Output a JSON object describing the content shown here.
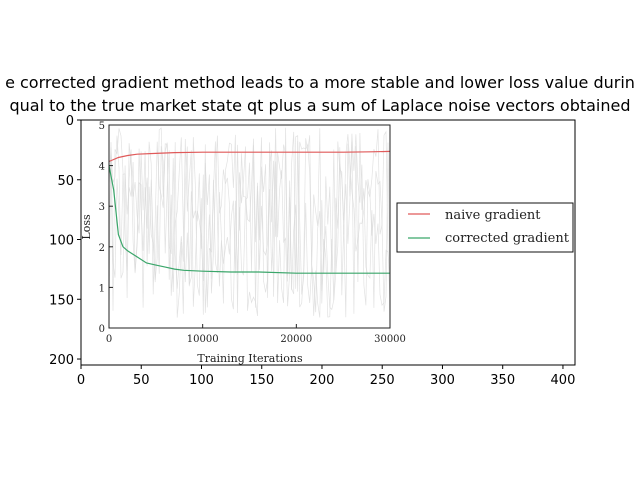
{
  "chart_data": {
    "type": "line",
    "title_lines": [
      "e corrected gradient method leads to a more stable and lower loss value durin",
      "qual to the true market state qt plus a sum of Laplace noise vectors obtained"
    ],
    "outer_axes": {
      "xlim": [
        0,
        410
      ],
      "ylim": [
        205,
        0
      ],
      "xticks": [
        0,
        50,
        100,
        150,
        200,
        250,
        300,
        350,
        400
      ],
      "yticks": [
        0,
        50,
        100,
        150,
        200
      ]
    },
    "inner_plot": {
      "xlabel": "Training Iterations",
      "ylabel": "Loss",
      "xlim": [
        0,
        30000
      ],
      "ylim": [
        0,
        5
      ],
      "xticks": [
        0,
        10000,
        20000,
        30000
      ],
      "yticks": [
        0,
        1,
        2,
        3,
        4,
        5
      ],
      "legend_position": "center-right",
      "series": [
        {
          "name": "naive gradient",
          "color": "#e05a5a",
          "x": [
            0,
            1000,
            2000,
            3000,
            5000,
            7000,
            10000,
            15000,
            20000,
            25000,
            28000,
            30000
          ],
          "y": [
            4.1,
            4.2,
            4.25,
            4.28,
            4.3,
            4.32,
            4.33,
            4.33,
            4.33,
            4.33,
            4.34,
            4.35
          ]
        },
        {
          "name": "corrected gradient",
          "color": "#3aa66a",
          "x": [
            0,
            500,
            1000,
            1500,
            2000,
            3000,
            4000,
            5000,
            6000,
            7000,
            8000,
            10000,
            13000,
            16000,
            20000,
            25000,
            30000
          ],
          "y": [
            4.0,
            3.4,
            2.3,
            2.0,
            1.9,
            1.75,
            1.6,
            1.55,
            1.5,
            1.45,
            1.42,
            1.4,
            1.38,
            1.38,
            1.35,
            1.35,
            1.35
          ]
        }
      ]
    }
  }
}
